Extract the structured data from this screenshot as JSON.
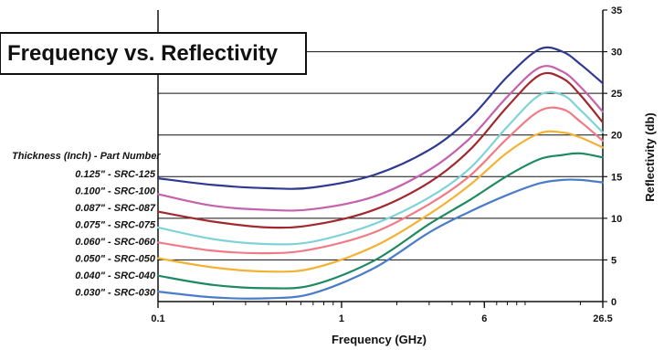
{
  "chart_data": {
    "type": "line",
    "title": "Frequency vs. Reflectivity",
    "xlabel": "Frequency (GHz)",
    "ylabel": "Reflectivity (db)",
    "x_scale": "log",
    "xlim": [
      0.1,
      26.5
    ],
    "ylim": [
      0,
      35
    ],
    "x_ticks": [
      {
        "value": 0.1,
        "label": "0.1"
      },
      {
        "value": 1,
        "label": "1"
      },
      {
        "value": 6,
        "label": "6"
      },
      {
        "value": 26.5,
        "label": "26.5"
      }
    ],
    "y_ticks": [
      {
        "value": 0,
        "label": "0"
      },
      {
        "value": 5,
        "label": "5"
      },
      {
        "value": 10,
        "label": "10"
      },
      {
        "value": 15,
        "label": "15"
      },
      {
        "value": 20,
        "label": "20"
      },
      {
        "value": 25,
        "label": "25"
      },
      {
        "value": 30,
        "label": "30"
      },
      {
        "value": 35,
        "label": "35"
      }
    ],
    "y_axis_position": "right",
    "grid": "horizontal",
    "legend_title": "Thickness (Inch) - Part Number",
    "legend_position": "left",
    "x": [
      0.1,
      0.2,
      0.4,
      0.7,
      1.5,
      3,
      5,
      8,
      12,
      16,
      20,
      26.5
    ],
    "series": [
      {
        "name": "0.125\" - SRC-125",
        "color": "#2e3a91",
        "values": [
          14.8,
          14.0,
          13.6,
          13.7,
          15.2,
          18.2,
          22.0,
          27.0,
          30.3,
          30.0,
          28.5,
          26.2
        ]
      },
      {
        "name": "0.100\" - SRC-100",
        "color": "#c561ad",
        "values": [
          12.9,
          11.5,
          11.0,
          11.1,
          12.6,
          15.8,
          19.6,
          24.6,
          28.1,
          27.6,
          25.8,
          22.8
        ]
      },
      {
        "name": "0.087\" - SRC-087",
        "color": "#a1282d",
        "values": [
          10.8,
          9.6,
          8.9,
          9.2,
          11.0,
          14.3,
          18.2,
          23.4,
          27.2,
          26.8,
          24.8,
          21.5
        ]
      },
      {
        "name": "0.075\" - SRC-075",
        "color": "#7fd3d8",
        "values": [
          8.9,
          7.5,
          6.9,
          7.2,
          9.3,
          12.5,
          16.0,
          21.0,
          24.8,
          24.8,
          23.0,
          20.3
        ]
      },
      {
        "name": "0.060\" - SRC-060",
        "color": "#f07b86",
        "values": [
          7.1,
          6.1,
          5.8,
          6.3,
          8.3,
          11.7,
          15.1,
          19.6,
          22.9,
          23.1,
          21.6,
          19.3
        ]
      },
      {
        "name": "0.050\" - SRC-050",
        "color": "#f4b233",
        "values": [
          5.2,
          4.1,
          3.6,
          4.0,
          6.6,
          10.5,
          14.0,
          17.9,
          20.2,
          20.3,
          19.7,
          18.5
        ]
      },
      {
        "name": "0.040\" - SRC-040",
        "color": "#1d8a5f",
        "values": [
          3.1,
          2.0,
          1.6,
          2.0,
          4.9,
          9.3,
          12.2,
          15.1,
          17.1,
          17.6,
          17.8,
          17.3
        ]
      },
      {
        "name": "0.030\" - SRC-030",
        "color": "#4a7cc9",
        "values": [
          1.2,
          0.5,
          0.4,
          1.0,
          4.0,
          8.3,
          10.8,
          12.8,
          14.2,
          14.6,
          14.6,
          14.3
        ]
      }
    ]
  }
}
